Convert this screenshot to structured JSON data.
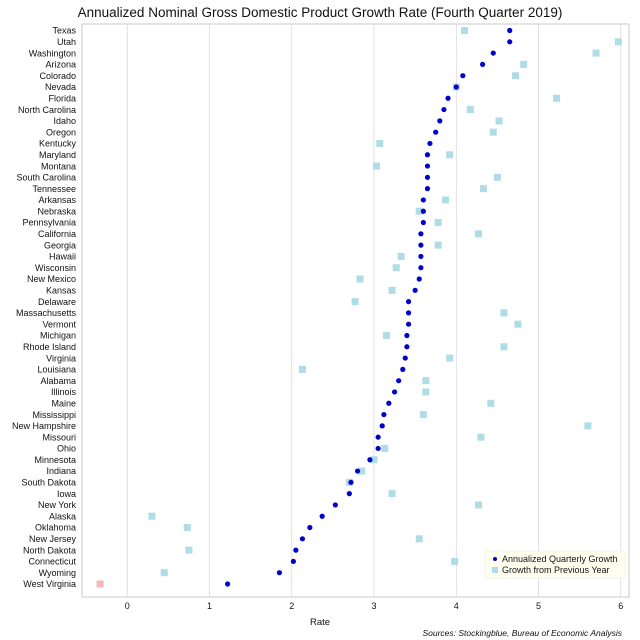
{
  "chart_data": {
    "type": "scatter",
    "title": "Annualized Nominal Gross Domestic Product Growth Rate (Fourth Quarter 2019)",
    "xlabel": "Rate",
    "ylabel": "",
    "xlim": [
      -0.55,
      6.1
    ],
    "xticks": [
      0,
      1,
      2,
      3,
      4,
      5,
      6
    ],
    "grid": true,
    "legend_position": "bottom-right",
    "source": "Sources: Stockingblue, Bureau of Economic Analysis",
    "categories": [
      "Texas",
      "Utah",
      "Washington",
      "Arizona",
      "Colorado",
      "Nevada",
      "Florida",
      "North Carolina",
      "Idaho",
      "Oregon",
      "Kentucky",
      "Maryland",
      "Montana",
      "South Carolina",
      "Tennessee",
      "Arkansas",
      "Nebraska",
      "Pennsylvania",
      "California",
      "Georgia",
      "Hawaii",
      "Wisconsin",
      "New Mexico",
      "Kansas",
      "Delaware",
      "Massachusetts",
      "Vermont",
      "Michigan",
      "Rhode Island",
      "Virginia",
      "Louisiana",
      "Alabama",
      "Illinois",
      "Maine",
      "Mississippi",
      "New Hampshire",
      "Missouri",
      "Ohio",
      "Minnesota",
      "Indiana",
      "South Dakota",
      "Iowa",
      "New York",
      "Alaska",
      "Oklahoma",
      "New Jersey",
      "North Dakota",
      "Connecticut",
      "Wyoming",
      "West Virginia"
    ],
    "series": [
      {
        "name": "Annualized Quarterly Growth",
        "marker": "dot",
        "color": "#0000cc",
        "values": [
          4.65,
          4.65,
          4.45,
          4.32,
          4.08,
          4.0,
          3.9,
          3.85,
          3.8,
          3.75,
          3.68,
          3.65,
          3.65,
          3.65,
          3.65,
          3.6,
          3.6,
          3.6,
          3.57,
          3.57,
          3.57,
          3.57,
          3.55,
          3.5,
          3.42,
          3.42,
          3.42,
          3.4,
          3.4,
          3.38,
          3.35,
          3.3,
          3.25,
          3.18,
          3.12,
          3.1,
          3.05,
          3.05,
          2.95,
          2.8,
          2.72,
          2.7,
          2.53,
          2.37,
          2.22,
          2.13,
          2.05,
          2.02,
          1.85,
          1.22
        ]
      },
      {
        "name": "Growth from Previous Year",
        "marker": "square",
        "color": "#aedde6",
        "values": [
          4.1,
          5.97,
          5.7,
          4.82,
          4.72,
          4.0,
          5.22,
          4.17,
          4.52,
          4.45,
          3.07,
          3.92,
          3.03,
          4.5,
          4.33,
          3.87,
          3.55,
          3.78,
          4.27,
          3.78,
          3.33,
          3.27,
          2.83,
          3.22,
          2.77,
          4.58,
          4.75,
          3.15,
          4.58,
          3.92,
          2.13,
          3.63,
          3.63,
          4.42,
          3.6,
          5.6,
          4.3,
          3.13,
          3.0,
          2.85,
          2.7,
          3.22,
          4.27,
          0.3,
          0.73,
          3.55,
          0.75,
          3.98,
          0.45,
          -0.33
        ],
        "highlight_color": "#f4b8bc"
      }
    ]
  }
}
